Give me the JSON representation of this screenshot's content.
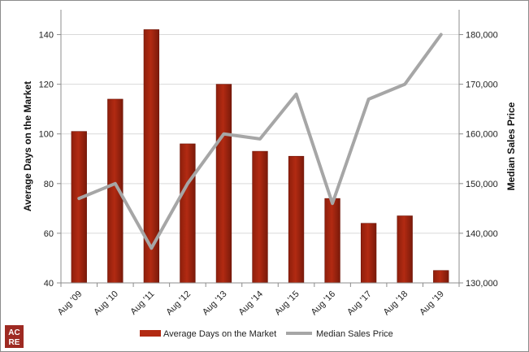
{
  "chart_data": {
    "type": "bar",
    "categories": [
      "Aug '09",
      "Aug '10",
      "Aug '11",
      "Aug '12",
      "Aug '13",
      "Aug '14",
      "Aug '15",
      "Aug '16",
      "Aug '17",
      "Aug '18",
      "Aug '19"
    ],
    "series": [
      {
        "name": "Average Days on the Market",
        "type": "bar",
        "axis": "left",
        "color": "#b22a12",
        "values": [
          101,
          114,
          142,
          96,
          120,
          93,
          91,
          74,
          64,
          67,
          45
        ]
      },
      {
        "name": "Median Sales Price",
        "type": "line",
        "axis": "right",
        "color": "#a6a6a6",
        "values": [
          147000,
          150000,
          137000,
          150000,
          160000,
          159000,
          168000,
          146000,
          167000,
          170000,
          180000
        ]
      }
    ],
    "ylabel": "Average Days on the Market",
    "ylim": [
      40,
      150
    ],
    "yticks": [
      "40",
      "60",
      "80",
      "100",
      "120",
      "140"
    ],
    "y2label": "Median Sales Price",
    "y2lim": [
      130000,
      185000
    ],
    "y2ticks": [
      "130,000",
      "140,000",
      "150,000",
      "160,000",
      "170,000",
      "180,000"
    ],
    "grid": true,
    "legend_position": "bottom"
  },
  "logo": {
    "line1": "AC",
    "line2": "RE",
    "color": "#9e2a22"
  }
}
